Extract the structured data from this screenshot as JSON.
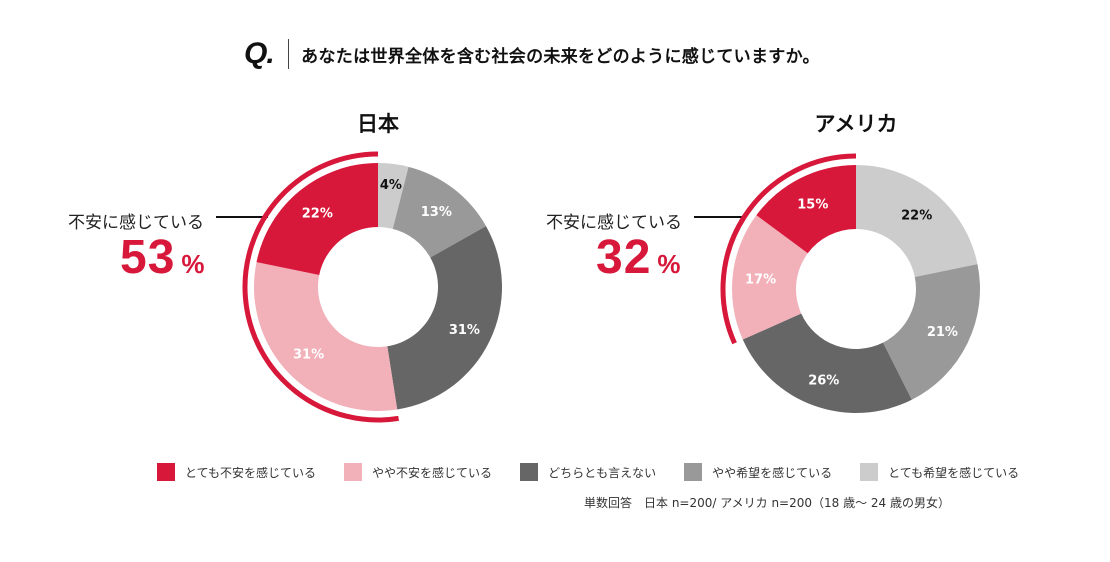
{
  "question": {
    "mark": "Q.",
    "text": "あなたは世界全体を含む社会の未来をどのように感じていますか。"
  },
  "legend": [
    {
      "label": "とても不安を感じている",
      "color": "#d7183a"
    },
    {
      "label": "やや不安を感じている",
      "color": "#f2b0b9"
    },
    {
      "label": "どちらとも言えない",
      "color": "#666666"
    },
    {
      "label": "やや希望を感じている",
      "color": "#999999"
    },
    {
      "label": "とても希望を感じている",
      "color": "#cccccc"
    }
  ],
  "note": "単数回答　日本 n=200/ アメリカ n=200（18 歳～ 24 歳の男女）",
  "chart_data": [
    {
      "type": "pie",
      "title": "日本",
      "categories": [
        "とても不安を感じている",
        "やや不安を感じている",
        "どちらとも言えない",
        "やや希望を感じている",
        "とても希望を感じている"
      ],
      "values": [
        22,
        31,
        31,
        13,
        4
      ],
      "labels": [
        "22%",
        "31%",
        "31%",
        "13%",
        "4%"
      ],
      "anxious_label": "不安に感じている",
      "anxious_total": "53",
      "anxious_unit": "%"
    },
    {
      "type": "pie",
      "title": "アメリカ",
      "categories": [
        "とても不安を感じている",
        "やや不安を感じている",
        "どちらとも言えない",
        "やや希望を感じている",
        "とても希望を感じている"
      ],
      "values": [
        15,
        17,
        26,
        21,
        22
      ],
      "labels": [
        "15%",
        "17%",
        "26%",
        "21%",
        "22%"
      ],
      "anxious_label": "不安に感じている",
      "anxious_total": "32",
      "anxious_unit": "%"
    }
  ]
}
